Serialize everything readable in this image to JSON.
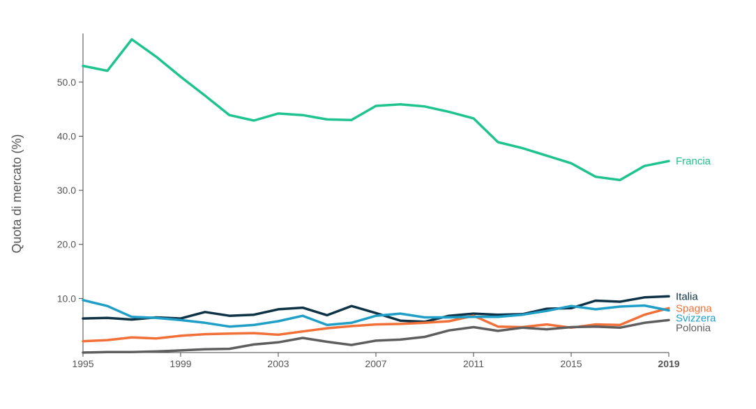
{
  "chart_data": {
    "type": "line",
    "title": "",
    "xlabel": "",
    "ylabel": "Quota di mercato (%)",
    "x": [
      1995,
      1996,
      1997,
      1998,
      1999,
      2000,
      2001,
      2002,
      2003,
      2004,
      2005,
      2006,
      2007,
      2008,
      2009,
      2010,
      2011,
      2012,
      2013,
      2014,
      2015,
      2016,
      2017,
      2018,
      2019
    ],
    "xlim": [
      1995,
      2019
    ],
    "ylim": [
      0,
      59
    ],
    "x_ticks": [
      "1995",
      "1999",
      "2003",
      "2007",
      "2011",
      "2015",
      "2019"
    ],
    "y_ticks": [
      "10.0",
      "20.0",
      "30.0",
      "40.0",
      "50.0"
    ],
    "grid": false,
    "legend": "labels at line ends (right)",
    "series": [
      {
        "name": "Francia",
        "color": "#1fc38f",
        "values": [
          53.0,
          52.1,
          57.9,
          54.7,
          51.0,
          47.5,
          43.9,
          42.9,
          44.2,
          43.9,
          43.1,
          43.0,
          45.6,
          45.9,
          45.5,
          44.5,
          43.3,
          38.9,
          37.8,
          36.4,
          35.0,
          32.5,
          31.9,
          34.5,
          35.4
        ]
      },
      {
        "name": "Italia",
        "color": "#0e3346",
        "values": [
          6.3,
          6.4,
          6.1,
          6.5,
          6.3,
          7.5,
          6.8,
          7.0,
          8.0,
          8.3,
          6.9,
          8.6,
          7.3,
          5.9,
          5.7,
          6.8,
          7.2,
          7.0,
          7.1,
          8.1,
          8.2,
          9.6,
          9.4,
          10.2,
          10.4
        ]
      },
      {
        "name": "Spagna",
        "color": "#f07038",
        "values": [
          2.1,
          2.3,
          2.8,
          2.6,
          3.1,
          3.4,
          3.5,
          3.6,
          3.3,
          3.9,
          4.5,
          4.9,
          5.2,
          5.3,
          5.5,
          5.8,
          6.8,
          4.8,
          4.7,
          5.2,
          4.6,
          5.2,
          5.1,
          7.0,
          8.2
        ]
      },
      {
        "name": "Svizzera",
        "color": "#1f9fc8",
        "values": [
          9.7,
          8.6,
          6.6,
          6.4,
          6.0,
          5.5,
          4.8,
          5.1,
          5.8,
          6.8,
          5.1,
          5.5,
          6.8,
          7.2,
          6.5,
          6.5,
          6.6,
          6.6,
          7.0,
          7.7,
          8.6,
          8.0,
          8.5,
          8.7,
          7.8
        ]
      },
      {
        "name": "Polonia",
        "color": "#5e5e5e",
        "values": [
          0.0,
          0.1,
          0.1,
          0.2,
          0.4,
          0.6,
          0.7,
          1.5,
          1.9,
          2.7,
          2.0,
          1.4,
          2.2,
          2.4,
          2.9,
          4.1,
          4.7,
          4.0,
          4.6,
          4.3,
          4.7,
          4.8,
          4.6,
          5.5,
          6.0
        ]
      }
    ]
  }
}
